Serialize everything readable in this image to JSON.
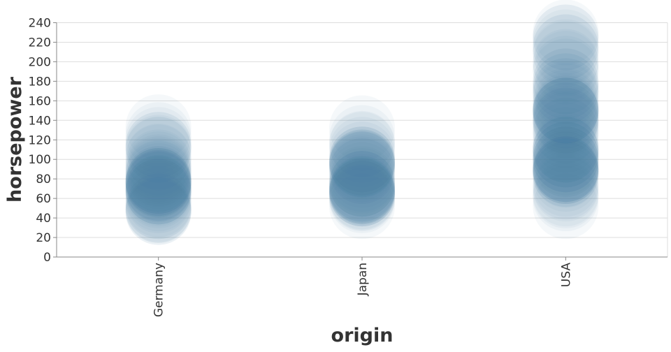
{
  "chart_data": {
    "type": "scatter",
    "title": "",
    "xlabel": "origin",
    "ylabel": "horsepower",
    "ylim": [
      0,
      240
    ],
    "yticks": [
      "0",
      "20",
      "40",
      "60",
      "80",
      "100",
      "120",
      "140",
      "160",
      "180",
      "200",
      "220",
      "240"
    ],
    "categories": [
      "Germany",
      "Japan",
      "USA"
    ],
    "grid": true,
    "color": "#4c78a8",
    "series": [
      {
        "category": "Germany",
        "values": [
          46,
          46,
          48,
          48,
          49,
          52,
          52,
          54,
          58,
          60,
          63,
          65,
          67,
          67,
          67,
          67,
          69,
          70,
          70,
          71,
          71,
          74,
          74,
          75,
          75,
          76,
          76,
          76,
          78,
          78,
          78,
          78,
          78,
          80,
          80,
          83,
          85,
          86,
          88,
          90,
          92,
          95,
          97,
          102,
          103,
          110,
          110,
          112,
          115,
          115,
          120,
          125,
          133
        ]
      },
      {
        "category": "Japan",
        "values": [
          52,
          58,
          60,
          61,
          62,
          65,
          65,
          65,
          65,
          67,
          67,
          67,
          68,
          68,
          68,
          69,
          70,
          70,
          70,
          72,
          75,
          75,
          75,
          75,
          78,
          80,
          84,
          88,
          88,
          90,
          92,
          94,
          95,
          95,
          95,
          96,
          97,
          97,
          97,
          100,
          100,
          100,
          105,
          110,
          115,
          116,
          122,
          132
        ]
      },
      {
        "category": "USA",
        "values": [
          52,
          60,
          63,
          65,
          70,
          72,
          75,
          80,
          84,
          85,
          85,
          88,
          88,
          88,
          88,
          90,
          90,
          90,
          90,
          90,
          92,
          95,
          95,
          97,
          100,
          100,
          100,
          100,
          105,
          105,
          105,
          105,
          110,
          110,
          110,
          110,
          112,
          115,
          120,
          125,
          129,
          130,
          135,
          137,
          139,
          140,
          140,
          142,
          145,
          145,
          148,
          150,
          150,
          150,
          150,
          150,
          150,
          152,
          153,
          155,
          158,
          160,
          165,
          167,
          170,
          170,
          175,
          175,
          180,
          180,
          190,
          193,
          198,
          200,
          208,
          210,
          215,
          215,
          220,
          225,
          225,
          230
        ]
      }
    ]
  }
}
